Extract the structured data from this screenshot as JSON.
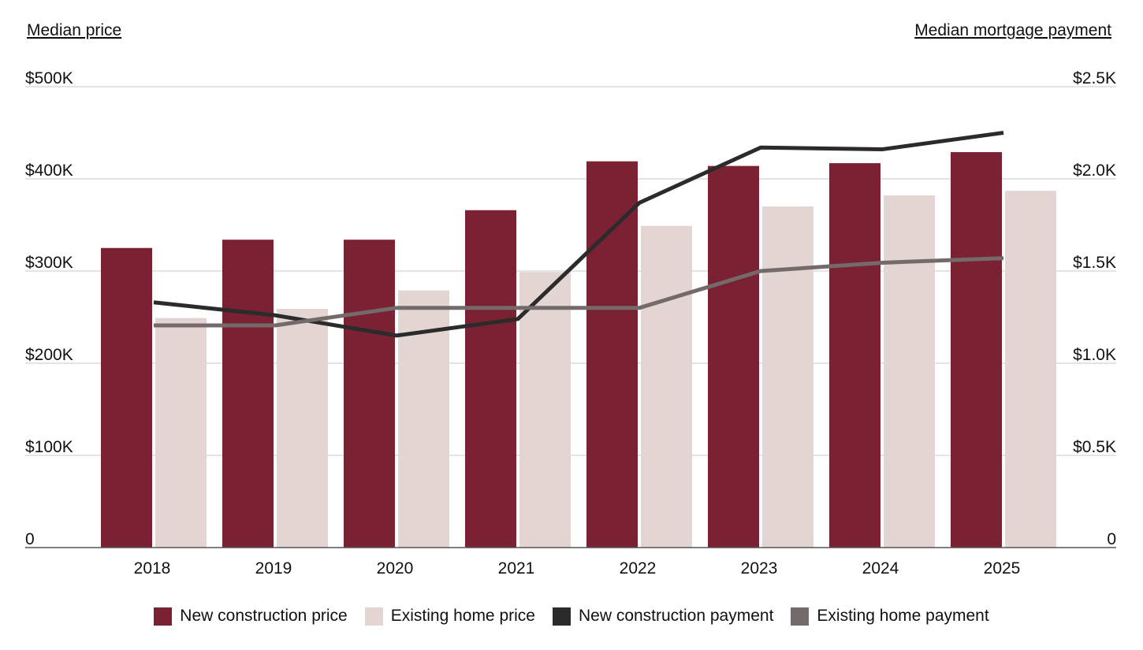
{
  "chart_data": {
    "type": "bar",
    "categories": [
      "2018",
      "2019",
      "2020",
      "2021",
      "2022",
      "2023",
      "2024",
      "2025"
    ],
    "left_axis_title": "Median price",
    "right_axis_title": "Median mortgage payment",
    "left_ticks": [
      "0",
      "$100K",
      "$200K",
      "$300K",
      "$400K",
      "$500K"
    ],
    "right_ticks": [
      "0",
      "$0.5K",
      "$1.0K",
      "$1.5K",
      "$2.0K",
      "$2.5K"
    ],
    "left_ylim": [
      0,
      500000
    ],
    "right_ylim": [
      0,
      2500
    ],
    "grid": true,
    "legend_position": "bottom-center",
    "bar_series": [
      {
        "name": "New construction price",
        "color": "#7b2134",
        "values": [
          325000,
          334000,
          334000,
          366000,
          419000,
          414000,
          417000,
          429000
        ]
      },
      {
        "name": "Existing home price",
        "color": "#e2d5d2",
        "values": [
          249000,
          259000,
          279000,
          299000,
          349000,
          370000,
          382000,
          387000
        ]
      }
    ],
    "line_series": [
      {
        "name": "New construction payment",
        "color": "#2b2b2b",
        "values": [
          1330,
          1260,
          1150,
          1240,
          1870,
          2170,
          2160,
          2250
        ]
      },
      {
        "name": "Existing home payment",
        "color": "#746a6a",
        "values": [
          1205,
          1205,
          1300,
          1300,
          1300,
          1500,
          1545,
          1570
        ]
      }
    ]
  }
}
